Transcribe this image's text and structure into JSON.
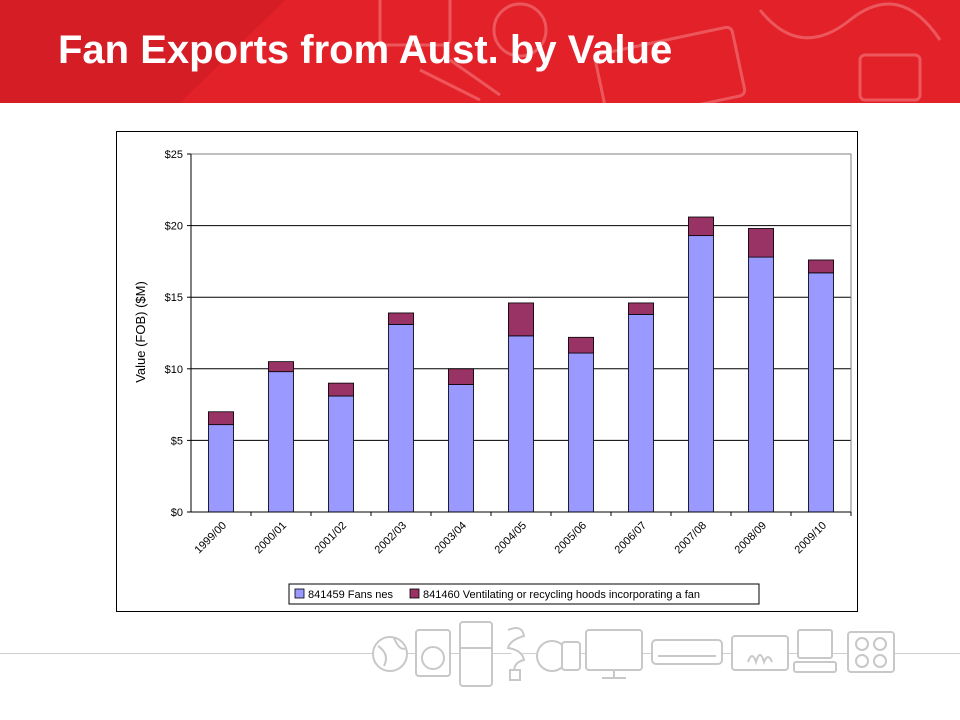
{
  "header": {
    "title": "Fan Exports from Aust. by Value"
  },
  "colors": {
    "header_bg": "#e32129",
    "series_1": "#9999ff",
    "series_2": "#993366"
  },
  "chart_data": {
    "type": "bar",
    "stacked": true,
    "title": "",
    "xlabel": "",
    "ylabel": "Value (FOB) ($M)",
    "ylim": [
      0,
      25
    ],
    "yticks": [
      "$0",
      "$5",
      "$10",
      "$15",
      "$20",
      "$25"
    ],
    "categories": [
      "1999/00",
      "2000/01",
      "2001/02",
      "2002/03",
      "2003/04",
      "2004/05",
      "2005/06",
      "2006/07",
      "2007/08",
      "2008/09",
      "2009/10"
    ],
    "series": [
      {
        "name": "841459 Fans nes",
        "values": [
          6.1,
          9.8,
          8.1,
          13.1,
          8.9,
          12.3,
          11.1,
          13.8,
          19.3,
          17.8,
          16.7
        ]
      },
      {
        "name": "841460 Ventilating or recycling hoods incorporating a fan",
        "values": [
          0.9,
          0.7,
          0.9,
          0.8,
          1.1,
          2.3,
          1.1,
          0.8,
          1.3,
          2.0,
          0.9
        ]
      }
    ],
    "grid": true,
    "legend": "bottom"
  },
  "decor": {
    "icons": [
      "globe-icon",
      "washing-machine-icon",
      "refrigerator-icon",
      "cfl-bulb-icon",
      "motor-icon",
      "television-icon",
      "air-conditioner-icon",
      "gas-heater-icon",
      "computer-icon",
      "cooktop-icon"
    ]
  }
}
